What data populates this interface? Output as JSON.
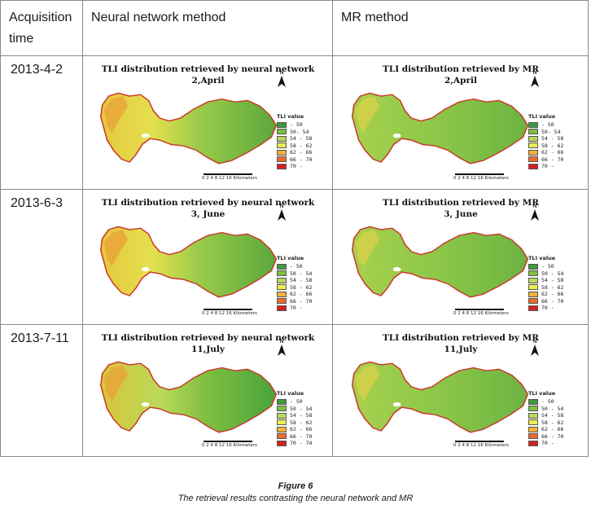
{
  "table": {
    "headers": {
      "time_line1": "Acquisition",
      "time_line2": "time",
      "nn": "Neural network method",
      "mr": "MR method"
    },
    "rows": [
      {
        "date": "2013-4-2",
        "nn_title": "TLI distribution retrieved by neural network",
        "nn_date": "2,April",
        "mr_title": "TLI distribution retrieved by MR",
        "mr_date": "2,April"
      },
      {
        "date": "2013-6-3",
        "nn_title": "TLI distribution retrieved by neural network",
        "nn_date": "3, June",
        "mr_title": "TLI distribution retrieved by MR",
        "mr_date": "3, June"
      },
      {
        "date": "2013-7-11",
        "nn_title": "TLI distribution retrieved by neural network",
        "nn_date": "11,July",
        "mr_title": "TLI distribution retrieved by MR",
        "mr_date": "11,July"
      }
    ]
  },
  "legend": {
    "title": "TLI value",
    "colors": [
      "#3f9a3a",
      "#7fbf3f",
      "#b9d95a",
      "#eded4f",
      "#f2b23a",
      "#ef6b2b",
      "#d81f1f"
    ],
    "labels_a": [
      "  - 50",
      "50- 54",
      "54 - 58",
      "58 - 62",
      "62 - 66",
      "66 - 70",
      "70 -"
    ],
    "labels_c": [
      "  - 50",
      "50 - 54",
      "54 - 58",
      "58 - 62",
      "62 - 66",
      "66 - 70",
      "70 - 74"
    ],
    "labels_b": [
      "  - 50",
      "50 - 54",
      "54 - 58",
      "58 - 62",
      "62 - 66",
      "66 - 70",
      "70 -"
    ]
  },
  "scale": {
    "ticks": "0  2  4     8      12     16",
    "unit": "Kilometers"
  },
  "north": "N",
  "figure": {
    "label": "Figure 6",
    "caption": "The retrieval results contrasting the neural network and MR"
  }
}
